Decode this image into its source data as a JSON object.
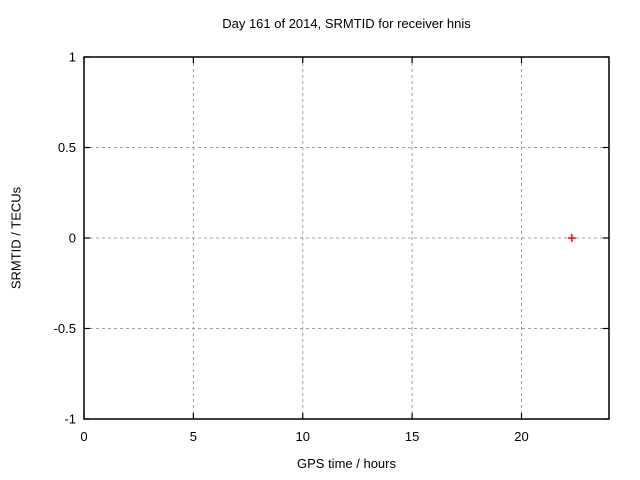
{
  "chart_data": {
    "type": "scatter",
    "title": "Day 161 of 2014, SRMTID for receiver hnis",
    "xlabel": "GPS time / hours",
    "ylabel": "SRMTID / TECUs",
    "xlim": [
      0,
      24
    ],
    "ylim": [
      -1,
      1
    ],
    "xticks": [
      0,
      5,
      10,
      15,
      20
    ],
    "yticks": [
      -1,
      -0.5,
      0,
      0.5,
      1
    ],
    "xtick_labels": [
      "0",
      "5",
      "10",
      "15",
      "20"
    ],
    "ytick_labels": [
      "-1",
      "-0.5",
      "0",
      "0.5",
      "1"
    ],
    "grid": true,
    "grid_style": "dashed",
    "legend": false,
    "series": [
      {
        "name": "SRMTID",
        "marker": "plus",
        "color": "#ff0000",
        "points": [
          {
            "x": 22.3,
            "y": 0.0
          }
        ]
      }
    ],
    "colors": {
      "axis": "#000000",
      "grid": "#a0a0a0",
      "background": "#ffffff",
      "point": "#ff0000"
    }
  }
}
